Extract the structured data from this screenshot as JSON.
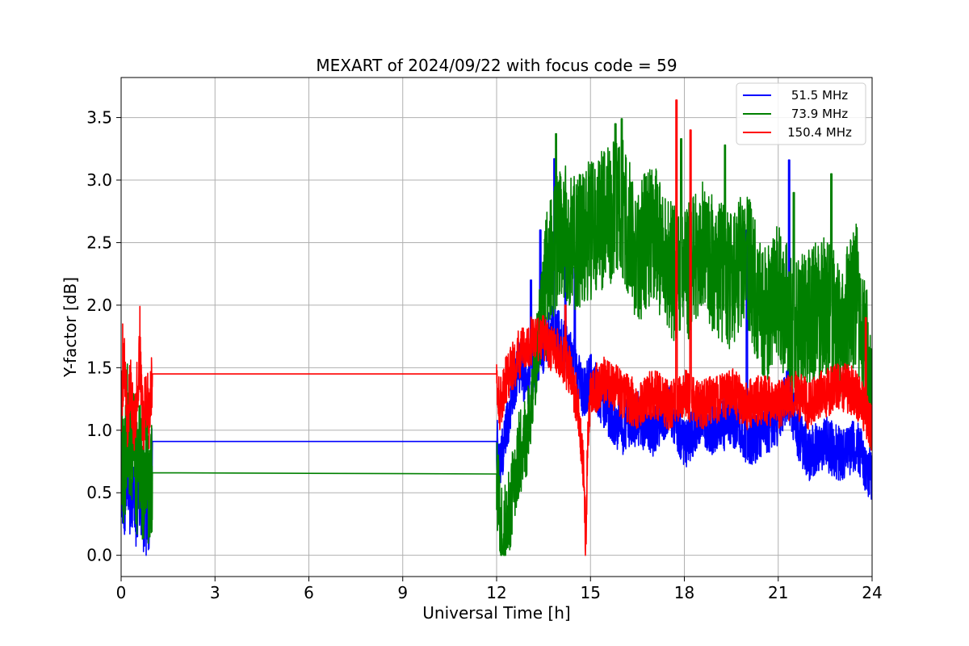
{
  "chart_data": {
    "type": "line",
    "title": "MEXART of 2024/09/22 with focus code = 59",
    "xlabel": "Universal Time [h]",
    "ylabel": "Y-factor [dB]",
    "xlim": [
      0,
      24
    ],
    "ylim": [
      -0.17,
      3.82
    ],
    "x_ticks": [
      0,
      3,
      6,
      9,
      12,
      15,
      18,
      21,
      24
    ],
    "y_ticks": [
      0.0,
      0.5,
      1.0,
      1.5,
      2.0,
      2.5,
      3.0,
      3.5
    ],
    "x_tick_labels": [
      "0",
      "3",
      "6",
      "9",
      "12",
      "15",
      "18",
      "21",
      "24"
    ],
    "y_tick_labels": [
      "0.0",
      "0.5",
      "1.0",
      "1.5",
      "2.0",
      "2.5",
      "3.0",
      "3.5"
    ],
    "grid": true,
    "legend_position": "top-right",
    "series": [
      {
        "name": "51.5 MHz",
        "color": "#0000ff",
        "x": [
          0.0,
          0.1,
          0.2,
          0.3,
          0.4,
          0.5,
          0.6,
          0.7,
          0.8,
          0.9,
          1.0,
          12.0,
          12.1,
          12.3,
          12.5,
          12.7,
          13.0,
          13.3,
          13.6,
          13.8,
          14.0,
          14.3,
          14.5,
          14.8,
          15.0,
          15.5,
          16.0,
          16.5,
          17.0,
          17.5,
          18.0,
          18.5,
          19.0,
          19.5,
          20.0,
          20.5,
          21.0,
          21.3,
          21.6,
          22.0,
          22.5,
          23.0,
          23.5,
          24.0
        ],
        "y": [
          0.6,
          0.4,
          0.7,
          0.35,
          0.5,
          0.3,
          0.55,
          0.25,
          0.4,
          0.3,
          0.91,
          0.91,
          0.7,
          1.0,
          1.3,
          1.5,
          1.4,
          1.6,
          1.7,
          1.8,
          1.75,
          1.6,
          1.5,
          1.3,
          1.4,
          1.2,
          1.0,
          1.1,
          1.0,
          1.2,
          0.9,
          1.1,
          1.0,
          1.1,
          0.9,
          1.0,
          1.1,
          1.3,
          1.0,
          0.8,
          0.9,
          0.8,
          0.9,
          0.6
        ],
        "peaks": [
          [
            13.1,
            2.2
          ],
          [
            13.4,
            2.6
          ],
          [
            13.85,
            3.17
          ],
          [
            14.2,
            2.4
          ],
          [
            14.5,
            2.3
          ],
          [
            21.35,
            3.16
          ],
          [
            20.0,
            2.6
          ],
          [
            0.8,
            0.0
          ]
        ]
      },
      {
        "name": "73.9 MHz",
        "color": "#008000",
        "x": [
          0.0,
          0.1,
          0.2,
          0.3,
          0.4,
          0.5,
          0.6,
          0.7,
          0.8,
          0.9,
          1.0,
          12.0,
          12.1,
          12.3,
          12.5,
          12.7,
          13.0,
          13.3,
          13.6,
          14.0,
          14.5,
          15.0,
          15.5,
          16.0,
          16.5,
          17.0,
          17.5,
          18.0,
          18.5,
          19.0,
          19.5,
          20.0,
          20.5,
          21.0,
          21.5,
          22.0,
          22.5,
          23.0,
          23.5,
          24.0
        ],
        "y": [
          0.9,
          0.6,
          1.1,
          0.7,
          0.9,
          0.6,
          0.8,
          0.5,
          0.9,
          0.4,
          0.66,
          0.65,
          0.3,
          0.2,
          0.5,
          0.8,
          1.0,
          1.7,
          2.2,
          2.6,
          2.5,
          2.6,
          2.7,
          2.8,
          2.4,
          2.6,
          2.3,
          2.2,
          2.5,
          2.3,
          2.2,
          2.4,
          1.9,
          2.1,
          1.8,
          1.9,
          2.0,
          1.8,
          2.1,
          1.3
        ],
        "peaks": [
          [
            13.9,
            3.37
          ],
          [
            15.8,
            3.45
          ],
          [
            16.0,
            3.49
          ],
          [
            17.9,
            3.33
          ],
          [
            19.3,
            3.28
          ],
          [
            21.5,
            2.9
          ],
          [
            22.7,
            3.05
          ],
          [
            12.2,
            0.01
          ]
        ]
      },
      {
        "name": "150.4 MHz",
        "color": "#ff0000",
        "x": [
          0.0,
          0.1,
          0.2,
          0.3,
          0.4,
          0.5,
          0.6,
          0.7,
          0.8,
          0.9,
          1.0,
          12.0,
          12.1,
          12.3,
          12.5,
          12.7,
          13.0,
          13.3,
          13.6,
          14.0,
          14.3,
          14.6,
          14.8,
          14.85,
          14.9,
          15.0,
          15.5,
          16.0,
          16.5,
          17.0,
          17.5,
          18.0,
          18.5,
          19.0,
          19.5,
          20.0,
          20.5,
          21.0,
          21.5,
          22.0,
          22.5,
          23.0,
          23.5,
          24.0
        ],
        "y": [
          1.2,
          1.6,
          1.1,
          1.4,
          1.0,
          1.3,
          1.6,
          1.0,
          1.3,
          1.1,
          1.45,
          1.45,
          1.2,
          1.4,
          1.5,
          1.6,
          1.7,
          1.75,
          1.7,
          1.6,
          1.5,
          1.2,
          0.6,
          0.0,
          0.8,
          1.3,
          1.4,
          1.3,
          1.2,
          1.3,
          1.2,
          1.3,
          1.2,
          1.25,
          1.3,
          1.2,
          1.25,
          1.2,
          1.3,
          1.2,
          1.3,
          1.35,
          1.3,
          1.0
        ],
        "peaks": [
          [
            0.6,
            1.99
          ],
          [
            0.05,
            1.85
          ],
          [
            17.75,
            3.64
          ],
          [
            18.2,
            3.4
          ],
          [
            14.2,
            2.0
          ],
          [
            23.8,
            1.9
          ]
        ]
      }
    ]
  }
}
